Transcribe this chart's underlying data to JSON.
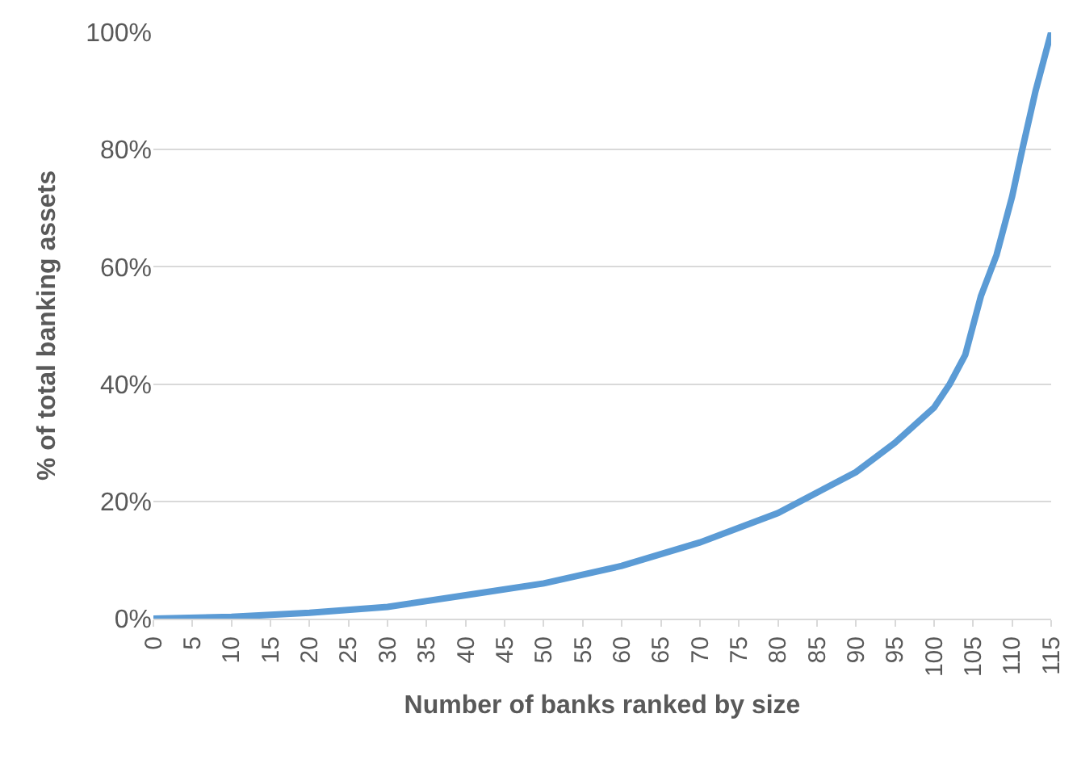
{
  "chart_data": {
    "type": "line",
    "xlabel": "Number of banks ranked by size",
    "ylabel": "% of total banking assets",
    "x": [
      0,
      10,
      20,
      30,
      40,
      50,
      60,
      70,
      80,
      90,
      95,
      100,
      102,
      104,
      106,
      108,
      110,
      111.3,
      113,
      115
    ],
    "series": [
      {
        "color": "#5b9bd5",
        "values": [
          0,
          0.3,
          1,
          2,
          4,
          6,
          9,
          13,
          18,
          25,
          30,
          36,
          40,
          45,
          55,
          62,
          72,
          80,
          90,
          100
        ]
      }
    ],
    "xlim": [
      0,
      115
    ],
    "xticks": [
      0,
      5,
      10,
      15,
      20,
      25,
      30,
      35,
      40,
      45,
      50,
      55,
      60,
      65,
      70,
      75,
      80,
      85,
      90,
      95,
      100,
      105,
      110,
      115
    ],
    "ylim": [
      0,
      100
    ],
    "yticks": [
      {
        "value": 0,
        "label": "0%"
      },
      {
        "value": 20,
        "label": "20%"
      },
      {
        "value": 40,
        "label": "40%"
      },
      {
        "value": 60,
        "label": "60%"
      },
      {
        "value": 80,
        "label": "80%"
      },
      {
        "value": 100,
        "label": "100%"
      }
    ],
    "grid": "y",
    "legend": false,
    "marker": "none",
    "line_style": "solid"
  }
}
